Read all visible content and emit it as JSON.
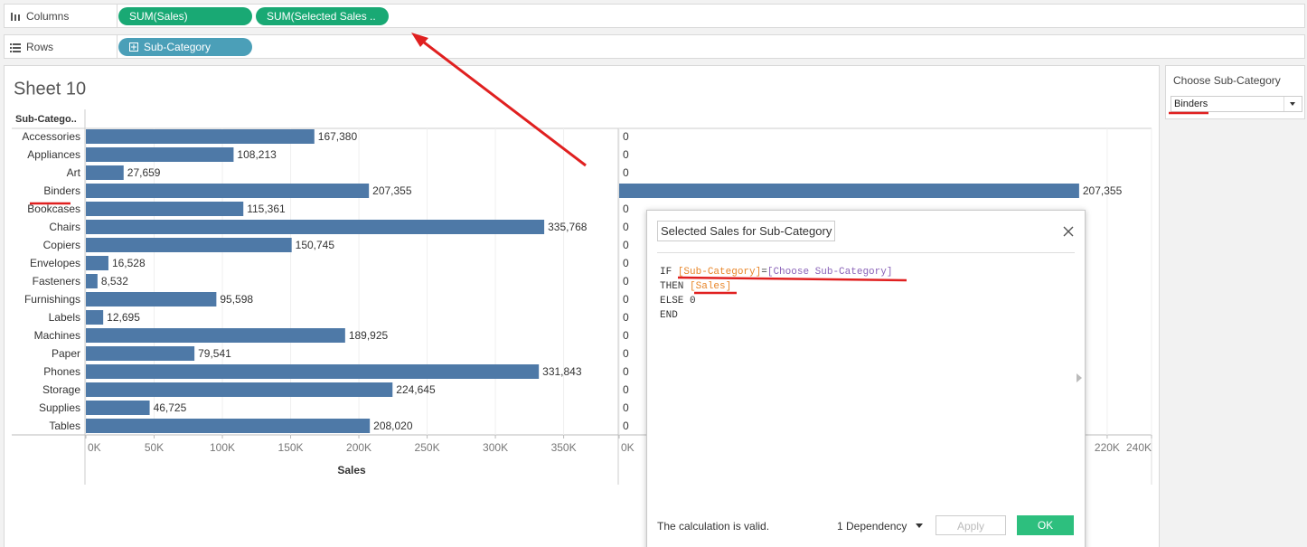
{
  "shelves": {
    "columns": {
      "label": "Columns",
      "pills": [
        "SUM(Sales)",
        "SUM(Selected Sales .."
      ]
    },
    "rows": {
      "label": "Rows",
      "pills": [
        "Sub-Category"
      ]
    }
  },
  "sheet": {
    "title": "Sheet 10",
    "row_header": "Sub-Catego..",
    "categories": [
      "Accessories",
      "Appliances",
      "Art",
      "Binders",
      "Bookcases",
      "Chairs",
      "Copiers",
      "Envelopes",
      "Fasteners",
      "Furnishings",
      "Labels",
      "Machines",
      "Paper",
      "Phones",
      "Storage",
      "Supplies",
      "Tables"
    ],
    "color": "#4e79a7",
    "sales": {
      "values": [
        167380,
        108213,
        27659,
        207355,
        115361,
        335768,
        150745,
        16528,
        8532,
        95598,
        12695,
        189925,
        79541,
        331843,
        224645,
        46725,
        208020
      ],
      "value_labels": [
        "167,380",
        "108,213",
        "27,659",
        "207,355",
        "115,361",
        "335,768",
        "150,745",
        "16,528",
        "8,532",
        "95,598",
        "12,695",
        "189,925",
        "79,541",
        "331,843",
        "224,645",
        "46,725",
        "208,020"
      ],
      "xlim": [
        0,
        390000
      ],
      "xticks": [
        {
          "value": 0,
          "label": "0K"
        },
        {
          "value": 50000,
          "label": "50K"
        },
        {
          "value": 100000,
          "label": "100K"
        },
        {
          "value": 150000,
          "label": "150K"
        },
        {
          "value": 200000,
          "label": "200K"
        },
        {
          "value": 250000,
          "label": "250K"
        },
        {
          "value": 300000,
          "label": "300K"
        },
        {
          "value": 350000,
          "label": "350K"
        }
      ],
      "axis_label": "Sales"
    },
    "selected_sales": {
      "values": [
        0,
        0,
        0,
        207355,
        0,
        0,
        0,
        0,
        0,
        0,
        0,
        0,
        0,
        0,
        0,
        0,
        0
      ],
      "value_labels": [
        null,
        null,
        null,
        "207,355",
        null,
        null,
        null,
        null,
        null,
        null,
        null,
        null,
        null,
        null,
        null,
        null,
        null
      ],
      "xlim": [
        0,
        240000
      ],
      "xticks": [
        {
          "value": 0,
          "label": "0K"
        },
        {
          "value": 220000,
          "label": "220K"
        },
        {
          "value": 240000,
          "label": "240K"
        }
      ]
    }
  },
  "filter": {
    "title": "Choose Sub-Category",
    "value": "Binders"
  },
  "dialog": {
    "title": "Selected Sales for Sub-Category",
    "code": [
      [
        "IF ",
        "[Sub-Category]",
        "=",
        "[Choose Sub-Category]"
      ],
      [
        "THEN ",
        "[Sales]"
      ],
      [
        "ELSE 0"
      ],
      [
        "END"
      ]
    ],
    "status": "The calculation is valid.",
    "dependency": "1 Dependency",
    "apply": "Apply",
    "ok": "OK"
  }
}
